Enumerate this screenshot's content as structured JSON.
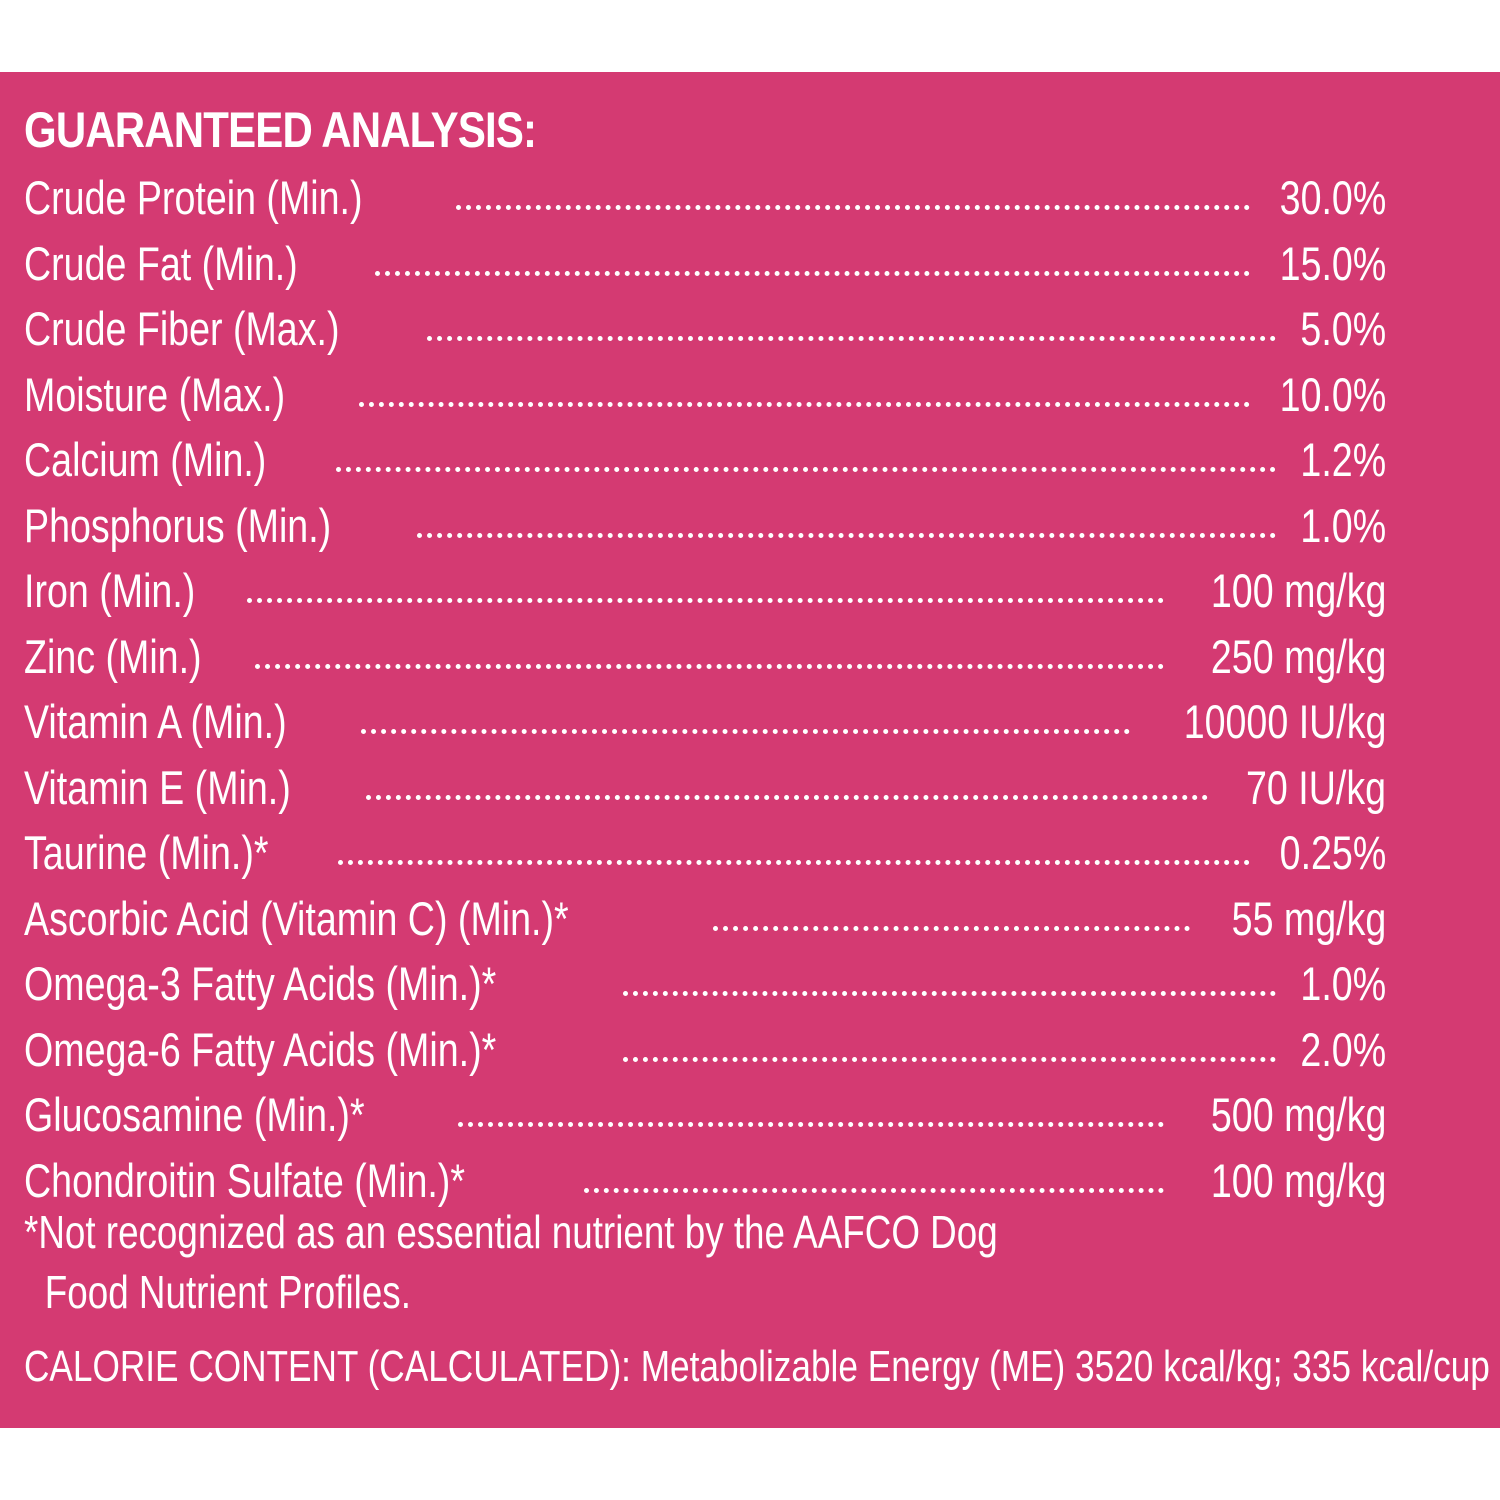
{
  "analysis": {
    "title": "GUARANTEED ANALYSIS:",
    "rows": [
      {
        "label": "Crude Protein (Min.)",
        "value": "30.0%"
      },
      {
        "label": "Crude Fat (Min.)",
        "value": "15.0%"
      },
      {
        "label": "Crude Fiber (Max.)",
        "value": "5.0%"
      },
      {
        "label": "Moisture (Max.)",
        "value": "10.0%"
      },
      {
        "label": "Calcium (Min.)",
        "value": "1.2%"
      },
      {
        "label": "Phosphorus (Min.)",
        "value": "1.0%"
      },
      {
        "label": "Iron (Min.)",
        "value": "100 mg/kg"
      },
      {
        "label": "Zinc (Min.)",
        "value": "250 mg/kg"
      },
      {
        "label": "Vitamin A (Min.)",
        "value": "10000 IU/kg"
      },
      {
        "label": "Vitamin E (Min.)",
        "value": "70 IU/kg"
      },
      {
        "label": "Taurine (Min.)*",
        "value": "0.25%"
      },
      {
        "label": "Ascorbic Acid (Vitamin C) (Min.)*",
        "value": "55 mg/kg"
      },
      {
        "label": "Omega-3 Fatty Acids (Min.)*",
        "value": "1.0%"
      },
      {
        "label": "Omega-6 Fatty Acids (Min.)*",
        "value": "2.0%"
      },
      {
        "label": "Glucosamine (Min.)*",
        "value": "500 mg/kg"
      },
      {
        "label": "Chondroitin Sulfate (Min.)*",
        "value": "100 mg/kg"
      }
    ],
    "footnote_line1": "*Not recognized as an essential nutrient by the AAFCO Dog",
    "footnote_line2": "Food Nutrient Profiles.",
    "calorie": "CALORIE CONTENT (CALCULATED): Metabolizable Energy (ME) 3520 kcal/kg; 335 kcal/cup"
  },
  "colors": {
    "panel_background": "#d43a72",
    "text": "#ffffff",
    "page_background": "#ffffff"
  }
}
